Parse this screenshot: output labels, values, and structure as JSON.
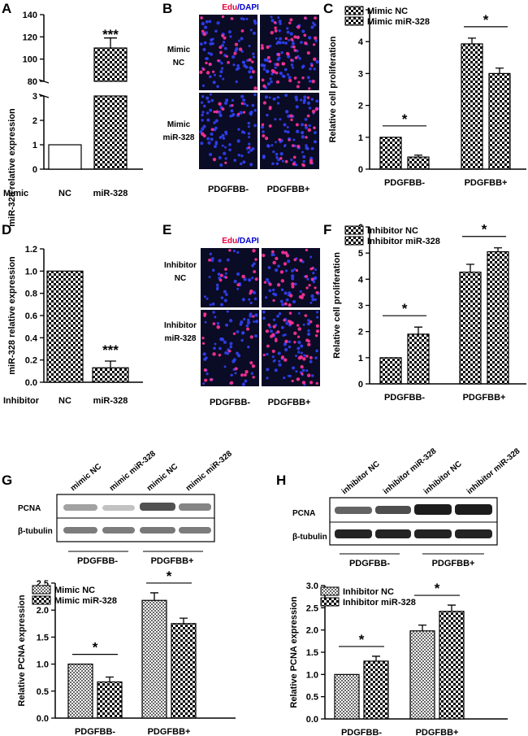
{
  "figure": {
    "colors": {
      "axis": "#000000",
      "nuclei": "#3344ff",
      "edu": "#ff3399",
      "panel_bg": "#0a0b24"
    }
  },
  "panels": {
    "A": {
      "label": "A",
      "row_label": "Mimic",
      "ylabel": "miR-328 relative expression"
    },
    "B": {
      "label": "B",
      "title_red": "Edu",
      "title_sep": "/",
      "title_blue": "DAPI",
      "row_labels": [
        [
          "Mimic",
          "NC"
        ],
        [
          "Mimic",
          "miR-328"
        ]
      ],
      "col_labels": [
        "PDGFBB-",
        "PDGFBB+"
      ]
    },
    "C": {
      "label": "C"
    },
    "D": {
      "label": "D",
      "row_label": "Inhibitor"
    },
    "E": {
      "label": "E",
      "title_red": "Edu",
      "title_sep": "/",
      "title_blue": "DAPI",
      "row_labels": [
        [
          "Inhibitor",
          "NC"
        ],
        [
          "Inhibitor",
          "miR-328"
        ]
      ],
      "col_labels": [
        "PDGFBB-",
        "PDGFBB+"
      ]
    },
    "F": {
      "label": "F"
    },
    "G": {
      "label": "G",
      "lane_labels": [
        "mimic NC",
        "mimic miR-328",
        "mimic NC",
        "mimic miR-328"
      ],
      "bands": [
        "PCNA",
        "β-tubulin"
      ],
      "groups": [
        "PDGFBB-",
        "PDGFBB+"
      ]
    },
    "H": {
      "label": "H",
      "lane_labels": [
        "inhibitor NC",
        "inhibitor miR-328",
        "inhibitor NC",
        "inhibitor miR-328"
      ],
      "bands": [
        "PCNA",
        "β-tubulin"
      ],
      "groups": [
        "PDGFBB-",
        "PDGFBB+"
      ]
    }
  },
  "chart_data": [
    {
      "id": "A",
      "type": "bar",
      "categories": [
        "NC",
        "miR-328"
      ],
      "values": [
        1.0,
        110
      ],
      "errors": [
        0,
        9
      ],
      "ylabel": "miR-328 relative expression",
      "xlabel": "Mimic",
      "axis_break": {
        "lower": [
          0,
          3
        ],
        "upper": [
          80,
          140
        ]
      },
      "yticks_lower": [
        "0",
        "1",
        "2",
        "3"
      ],
      "yticks_upper": [
        "80",
        "100",
        "120",
        "140"
      ],
      "significance": "***"
    },
    {
      "id": "C",
      "type": "bar",
      "categories": [
        "PDGFBB-",
        "PDGFBB+"
      ],
      "series": [
        {
          "name": "Mimic NC",
          "values": [
            1.0,
            3.93
          ],
          "errors": [
            0,
            0.18
          ]
        },
        {
          "name": "Mimic miR-328",
          "values": [
            0.38,
            3.0
          ],
          "errors": [
            0.06,
            0.17
          ]
        }
      ],
      "ylabel": "Relative cell proliferation",
      "ylim": [
        0,
        5
      ],
      "yticks": [
        "0",
        "1",
        "2",
        "3",
        "4",
        "5"
      ],
      "significance": [
        "*",
        "*"
      ]
    },
    {
      "id": "D",
      "type": "bar",
      "categories": [
        "NC",
        "miR-328"
      ],
      "values": [
        1.0,
        0.13
      ],
      "errors": [
        0,
        0.06
      ],
      "ylabel": "miR-328 relative expression",
      "xlabel": "Inhibitor",
      "ylim": [
        0,
        1.2
      ],
      "yticks": [
        "0.0",
        "0.2",
        "0.4",
        "0.6",
        "0.8",
        "1.0",
        "1.2"
      ],
      "significance": "***"
    },
    {
      "id": "F",
      "type": "bar",
      "categories": [
        "PDGFBB-",
        "PDGFBB+"
      ],
      "series": [
        {
          "name": "Inhibitor NC",
          "values": [
            1.0,
            4.27
          ],
          "errors": [
            0,
            0.3
          ]
        },
        {
          "name": "Inhibitor miR-328",
          "values": [
            1.9,
            5.05
          ],
          "errors": [
            0.27,
            0.15
          ]
        }
      ],
      "ylabel": "Relative cell proliferation",
      "ylim": [
        0,
        6
      ],
      "yticks": [
        "0",
        "1",
        "2",
        "3",
        "4",
        "5",
        "6"
      ],
      "significance": [
        "*",
        "*"
      ]
    },
    {
      "id": "G",
      "type": "bar",
      "categories": [
        "PDGFBB-",
        "PDGFBB+"
      ],
      "series": [
        {
          "name": "Mimic NC",
          "values": [
            1.0,
            2.18
          ],
          "errors": [
            0,
            0.14
          ]
        },
        {
          "name": "Mimic miR-328",
          "values": [
            0.67,
            1.75
          ],
          "errors": [
            0.09,
            0.1
          ]
        }
      ],
      "ylabel": "Relative PCNA expression",
      "ylim": [
        0,
        2.5
      ],
      "yticks": [
        "0.0",
        "0.5",
        "1.0",
        "1.5",
        "2.0",
        "2.5"
      ],
      "significance": [
        "*",
        "*"
      ]
    },
    {
      "id": "H",
      "type": "bar",
      "categories": [
        "PDGFBB-",
        "PDGFBB+"
      ],
      "series": [
        {
          "name": "Inhibitor NC",
          "values": [
            1.0,
            1.98
          ],
          "errors": [
            0,
            0.13
          ]
        },
        {
          "name": "Inhibitor miR-328",
          "values": [
            1.3,
            2.42
          ],
          "errors": [
            0.11,
            0.14
          ]
        }
      ],
      "ylabel": "Relative PCNA expression",
      "ylim": [
        0,
        3.0
      ],
      "yticks": [
        "0.0",
        "0.5",
        "1.0",
        "1.5",
        "2.0",
        "2.5",
        "3.0"
      ],
      "significance": [
        "*",
        "*"
      ]
    }
  ]
}
